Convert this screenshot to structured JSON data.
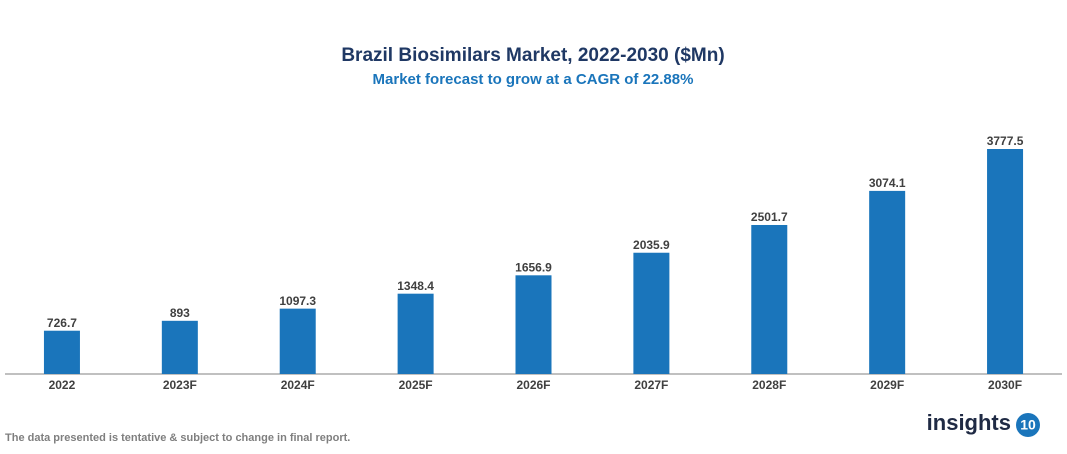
{
  "chart_data": {
    "type": "bar",
    "title": "Brazil Biosimilars Market, 2022-2030 ($Mn)",
    "subtitle": "Market forecast to grow at a CAGR of 22.88%",
    "categories": [
      "2022",
      "2023F",
      "2024F",
      "2025F",
      "2026F",
      "2027F",
      "2028F",
      "2029F",
      "2030F"
    ],
    "values": [
      726.7,
      893,
      1097.3,
      1348.4,
      1656.9,
      2035.9,
      2501.7,
      3074.1,
      3777.5
    ],
    "color": "#1a75bb"
  },
  "footer": {
    "note": "The data presented is tentative & subject to change in final report.",
    "logo_text": "insights",
    "logo_badge": "10"
  }
}
